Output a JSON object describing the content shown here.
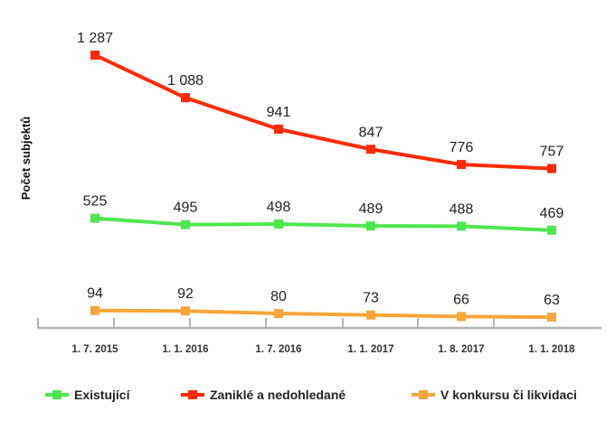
{
  "chart_data": {
    "type": "line",
    "title": "",
    "xlabel": "",
    "ylabel": "Počet subjektů",
    "categories": [
      "1. 7. 2015",
      "1. 1. 2016",
      "1. 7. 2016",
      "1. 1. 2017",
      "1. 8. 2017",
      "1. 1. 2018"
    ],
    "series": [
      {
        "name": "Existující",
        "color": "#4de84d",
        "values": [
          525,
          495,
          498,
          489,
          488,
          469
        ],
        "labels": [
          "525",
          "495",
          "498",
          "489",
          "488",
          "469"
        ]
      },
      {
        "name": "Zaniklé a nedohledané",
        "color": "#ff2a00",
        "values": [
          1287,
          1088,
          941,
          847,
          776,
          757
        ],
        "labels": [
          "1 287",
          "1 088",
          "941",
          "847",
          "776",
          "757"
        ]
      },
      {
        "name": "V konkursu či likvidaci",
        "color": "#f7a63a",
        "values": [
          94,
          92,
          80,
          73,
          66,
          63
        ],
        "labels": [
          "94",
          "92",
          "80",
          "73",
          "66",
          "63"
        ]
      }
    ],
    "grid": false,
    "legend": "bottom",
    "axis_color": "#b0b5b5"
  }
}
